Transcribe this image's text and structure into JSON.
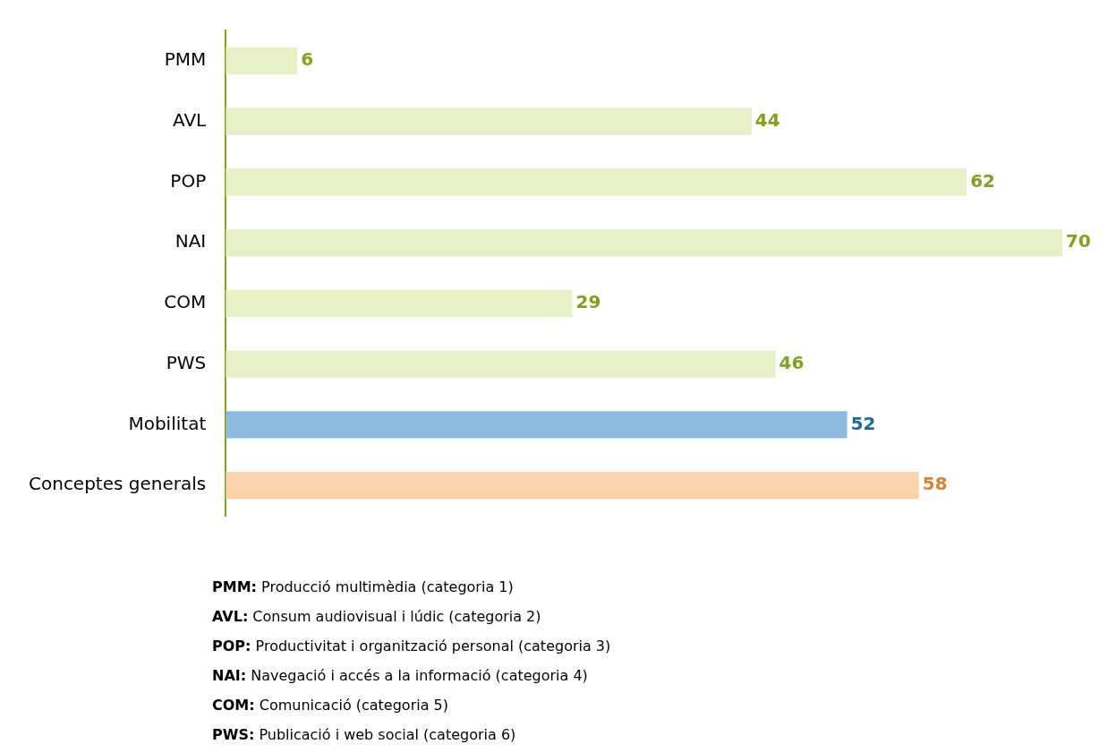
{
  "chart_data": {
    "type": "bar",
    "orientation": "horizontal",
    "categories": [
      "PMM",
      "AVL",
      "POP",
      "NAI",
      "COM",
      "PWS",
      "Mobilitat",
      "Conceptes generals"
    ],
    "values": [
      6,
      44,
      62,
      70,
      29,
      46,
      52,
      58
    ],
    "colors": [
      "#e6efc6",
      "#e6efc6",
      "#e6efc6",
      "#e6efc6",
      "#e6efc6",
      "#e6efc6",
      "#8dbbe0",
      "#fbd3ab"
    ],
    "data_labels": true,
    "legend": false,
    "tick_labels": "y",
    "annotations": [
      "PMM: Producció multimèdia (categoria 1)",
      "AVL: Consum audiovisual i lúdic (categoria 2)",
      "POP: Productivitat i organització personal (categoria 3)",
      "NAI: Navegació i accés a la informació (categoria 4)",
      "COM: Comunicació (categoria 5)",
      "PWS: Publicació i web social (categoria 6)"
    ]
  }
}
